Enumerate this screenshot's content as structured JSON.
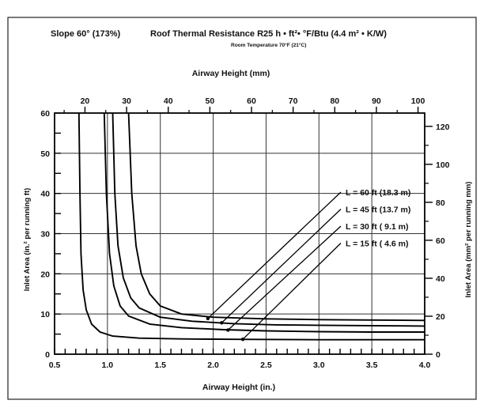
{
  "chart_data": {
    "type": "line",
    "header": {
      "slope": "Slope 60° (173%)",
      "title": "Roof Thermal Resistance R25 h • ft²• °F/Btu (4.4 m² • K/W)",
      "subtitle": "Room Temperature 70°F (21°C)"
    },
    "xlabel": "Airway Height (in.)",
    "xlabel_top": "Airway Height (mm)",
    "ylabel": "Inlet Area (in.² per running ft)",
    "ylabel_right": "Inlet Area (mm² per running mm)",
    "xlim": [
      0.5,
      4.0
    ],
    "ylim": [
      0,
      60
    ],
    "xlim_top": [
      12.7,
      101.6
    ],
    "ylim_right": [
      0,
      127
    ],
    "x_ticks": [
      "0.5",
      "1.0",
      "1.5",
      "2.0",
      "2.5",
      "3.0",
      "3.5",
      "4.0"
    ],
    "y_ticks": [
      "0",
      "10",
      "20",
      "30",
      "40",
      "50",
      "60"
    ],
    "top_ticks": [
      "20",
      "30",
      "40",
      "50",
      "60",
      "70",
      "80",
      "90",
      "100"
    ],
    "right_ticks": [
      "0",
      "20",
      "40",
      "60",
      "80",
      "100",
      "120"
    ],
    "grid": true,
    "series": [
      {
        "name": "L = 60 ft (18.3 m)",
        "x": [
          1.2,
          1.23,
          1.27,
          1.32,
          1.4,
          1.5,
          1.7,
          2.0,
          2.5,
          3.0,
          3.5,
          4.0
        ],
        "y": [
          60,
          40,
          27,
          20,
          15,
          12,
          10,
          9.2,
          8.8,
          8.6,
          8.5,
          8.4
        ]
      },
      {
        "name": "L = 45 ft (13.7 m)",
        "x": [
          1.05,
          1.07,
          1.1,
          1.15,
          1.22,
          1.3,
          1.5,
          1.8,
          2.2,
          2.6,
          3.0,
          3.5,
          4.0
        ],
        "y": [
          60,
          40,
          27,
          19,
          14,
          11.5,
          9.2,
          8.2,
          7.6,
          7.3,
          7.2,
          7.1,
          7.0
        ]
      },
      {
        "name": "L = 30 ft ( 9.1 m)",
        "x": [
          0.97,
          0.99,
          1.02,
          1.06,
          1.12,
          1.2,
          1.4,
          1.7,
          2.1,
          2.5,
          3.0,
          3.5,
          4.0
        ],
        "y": [
          60,
          40,
          25,
          17,
          12,
          9.5,
          7.5,
          6.6,
          6.1,
          5.8,
          5.6,
          5.5,
          5.5
        ]
      },
      {
        "name": "L = 15 ft ( 4.6 m)",
        "x": [
          0.73,
          0.74,
          0.75,
          0.77,
          0.8,
          0.85,
          0.93,
          1.05,
          1.3,
          1.7,
          2.2,
          3.0,
          4.0
        ],
        "y": [
          60,
          40,
          25,
          16,
          11,
          7.5,
          5.5,
          4.5,
          4.0,
          3.8,
          3.7,
          3.6,
          3.6
        ]
      }
    ],
    "annotations": [
      {
        "series": 0,
        "target": [
          1.95,
          8.9
        ]
      },
      {
        "series": 1,
        "target": [
          2.08,
          7.8
        ]
      },
      {
        "series": 2,
        "target": [
          2.14,
          6.0
        ]
      },
      {
        "series": 3,
        "target": [
          2.28,
          3.7
        ]
      }
    ]
  }
}
